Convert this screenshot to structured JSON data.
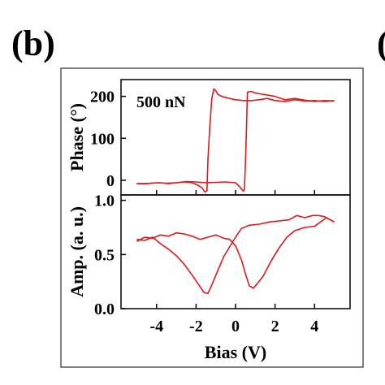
{
  "panel_label": "(b)",
  "next_panel_label": "(",
  "chart_data": [
    {
      "type": "line",
      "ylabel": "Phase (°)",
      "annotation": "500 nN",
      "xlim": [
        -5.8,
        5.8
      ],
      "ylim": [
        -35,
        240
      ],
      "yticks": [
        0,
        100,
        200
      ],
      "grid": false,
      "series": [
        {
          "color": "#e0191b",
          "x": [
            -5.0,
            -4.6,
            -4.2,
            -3.8,
            -3.4,
            -3.0,
            -2.6,
            -2.2,
            -1.9,
            -1.7,
            -1.55,
            -1.45,
            -1.4,
            -1.3,
            -1.2,
            -1.1,
            -1.0,
            -0.9,
            -0.7,
            -0.4,
            0.0,
            0.4,
            0.8,
            1.2,
            1.6,
            2.0,
            2.5,
            3.0,
            3.5,
            4.0,
            4.5,
            5.0
          ],
          "y": [
            -8,
            -8,
            -7,
            -6,
            -8,
            -6,
            -4,
            -6,
            -12,
            -18,
            -28,
            -25,
            50,
            130,
            195,
            218,
            213,
            205,
            200,
            196,
            192,
            190,
            190,
            192,
            195,
            190,
            188,
            192,
            189,
            190,
            188,
            190
          ]
        },
        {
          "color": "#e0191b",
          "x": [
            5.0,
            4.5,
            4.0,
            3.5,
            3.0,
            2.5,
            2.0,
            1.5,
            1.0,
            0.8,
            0.6,
            0.55,
            0.5,
            0.45,
            0.4,
            0.2,
            0.0,
            -0.5,
            -1.0,
            -1.5,
            -2.0,
            -2.5,
            -3.0,
            -3.5,
            -4.0,
            -4.5,
            -5.0
          ],
          "y": [
            189,
            190,
            188,
            191,
            195,
            192,
            200,
            204,
            208,
            212,
            210,
            120,
            40,
            -22,
            -26,
            -15,
            -6,
            -4,
            -5,
            -6,
            -4,
            -3,
            -6,
            -7,
            -6,
            -8,
            -8
          ]
        }
      ]
    },
    {
      "type": "line",
      "xlabel": "Bias (V)",
      "ylabel": "Amp. (a. u.)",
      "xlim": [
        -5.8,
        5.8
      ],
      "ylim": [
        0.0,
        1.05
      ],
      "xticks": [
        -4,
        -2,
        0,
        2,
        4
      ],
      "yticks": [
        0.0,
        0.5,
        1.0
      ],
      "ytick_labels": [
        "0.0",
        "0.5",
        "1.0"
      ],
      "grid": false,
      "series": [
        {
          "color": "#e0191b",
          "x": [
            -5.0,
            -4.6,
            -4.2,
            -3.8,
            -3.4,
            -3.0,
            -2.6,
            -2.2,
            -1.9,
            -1.6,
            -1.4,
            -1.2,
            -0.9,
            -0.6,
            -0.3,
            0.0,
            0.3,
            0.7,
            1.2,
            1.7,
            2.2,
            2.7,
            3.1,
            3.5,
            3.9,
            4.2,
            4.5,
            4.8,
            5.0
          ],
          "y": [
            0.64,
            0.63,
            0.66,
            0.6,
            0.55,
            0.49,
            0.41,
            0.31,
            0.23,
            0.15,
            0.14,
            0.22,
            0.35,
            0.48,
            0.57,
            0.66,
            0.74,
            0.77,
            0.78,
            0.8,
            0.81,
            0.82,
            0.86,
            0.84,
            0.86,
            0.86,
            0.85,
            0.82,
            0.8
          ]
        },
        {
          "color": "#e0191b",
          "x": [
            5.0,
            4.6,
            4.3,
            4.0,
            3.5,
            3.0,
            2.6,
            2.2,
            1.8,
            1.4,
            1.1,
            0.9,
            0.7,
            0.5,
            0.3,
            0.0,
            -0.3,
            -0.6,
            -1.0,
            -1.4,
            -1.8,
            -2.2,
            -2.6,
            -3.0,
            -3.4,
            -3.8,
            -4.2,
            -4.6,
            -5.0
          ],
          "y": [
            0.8,
            0.84,
            0.8,
            0.76,
            0.75,
            0.72,
            0.66,
            0.56,
            0.44,
            0.3,
            0.23,
            0.19,
            0.21,
            0.32,
            0.45,
            0.58,
            0.64,
            0.65,
            0.68,
            0.66,
            0.64,
            0.67,
            0.69,
            0.7,
            0.67,
            0.68,
            0.65,
            0.66,
            0.62
          ]
        }
      ]
    }
  ]
}
